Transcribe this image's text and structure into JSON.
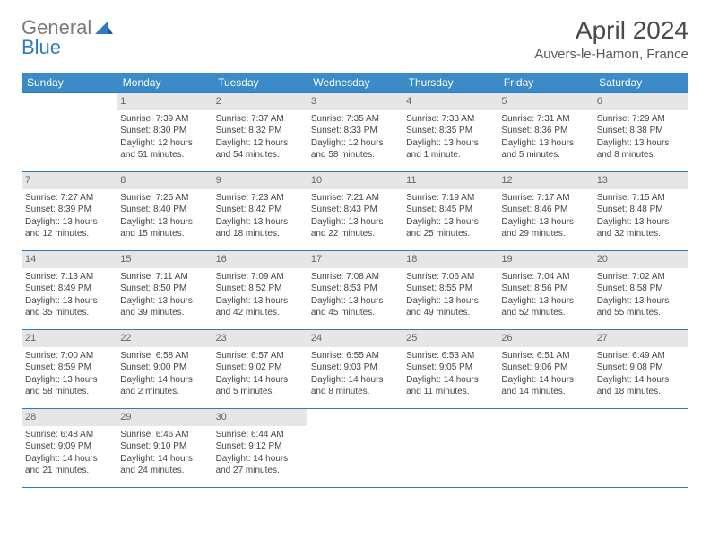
{
  "brand": {
    "part1": "General",
    "part2": "Blue"
  },
  "title": "April 2024",
  "location": "Auvers-le-Hamon, France",
  "colors": {
    "header_bg": "#3b8bc9",
    "header_text": "#ffffff",
    "row_border": "#2f7bbf",
    "daynum_bg": "#e6e6e6",
    "daynum_text": "#666666",
    "body_text": "#444444",
    "logo_gray": "#7a7a7a",
    "logo_blue": "#2f7bbf"
  },
  "weekdays": [
    "Sunday",
    "Monday",
    "Tuesday",
    "Wednesday",
    "Thursday",
    "Friday",
    "Saturday"
  ],
  "weeks": [
    [
      null,
      {
        "n": "1",
        "sunrise": "Sunrise: 7:39 AM",
        "sunset": "Sunset: 8:30 PM",
        "daylight": "Daylight: 12 hours and 51 minutes."
      },
      {
        "n": "2",
        "sunrise": "Sunrise: 7:37 AM",
        "sunset": "Sunset: 8:32 PM",
        "daylight": "Daylight: 12 hours and 54 minutes."
      },
      {
        "n": "3",
        "sunrise": "Sunrise: 7:35 AM",
        "sunset": "Sunset: 8:33 PM",
        "daylight": "Daylight: 12 hours and 58 minutes."
      },
      {
        "n": "4",
        "sunrise": "Sunrise: 7:33 AM",
        "sunset": "Sunset: 8:35 PM",
        "daylight": "Daylight: 13 hours and 1 minute."
      },
      {
        "n": "5",
        "sunrise": "Sunrise: 7:31 AM",
        "sunset": "Sunset: 8:36 PM",
        "daylight": "Daylight: 13 hours and 5 minutes."
      },
      {
        "n": "6",
        "sunrise": "Sunrise: 7:29 AM",
        "sunset": "Sunset: 8:38 PM",
        "daylight": "Daylight: 13 hours and 8 minutes."
      }
    ],
    [
      {
        "n": "7",
        "sunrise": "Sunrise: 7:27 AM",
        "sunset": "Sunset: 8:39 PM",
        "daylight": "Daylight: 13 hours and 12 minutes."
      },
      {
        "n": "8",
        "sunrise": "Sunrise: 7:25 AM",
        "sunset": "Sunset: 8:40 PM",
        "daylight": "Daylight: 13 hours and 15 minutes."
      },
      {
        "n": "9",
        "sunrise": "Sunrise: 7:23 AM",
        "sunset": "Sunset: 8:42 PM",
        "daylight": "Daylight: 13 hours and 18 minutes."
      },
      {
        "n": "10",
        "sunrise": "Sunrise: 7:21 AM",
        "sunset": "Sunset: 8:43 PM",
        "daylight": "Daylight: 13 hours and 22 minutes."
      },
      {
        "n": "11",
        "sunrise": "Sunrise: 7:19 AM",
        "sunset": "Sunset: 8:45 PM",
        "daylight": "Daylight: 13 hours and 25 minutes."
      },
      {
        "n": "12",
        "sunrise": "Sunrise: 7:17 AM",
        "sunset": "Sunset: 8:46 PM",
        "daylight": "Daylight: 13 hours and 29 minutes."
      },
      {
        "n": "13",
        "sunrise": "Sunrise: 7:15 AM",
        "sunset": "Sunset: 8:48 PM",
        "daylight": "Daylight: 13 hours and 32 minutes."
      }
    ],
    [
      {
        "n": "14",
        "sunrise": "Sunrise: 7:13 AM",
        "sunset": "Sunset: 8:49 PM",
        "daylight": "Daylight: 13 hours and 35 minutes."
      },
      {
        "n": "15",
        "sunrise": "Sunrise: 7:11 AM",
        "sunset": "Sunset: 8:50 PM",
        "daylight": "Daylight: 13 hours and 39 minutes."
      },
      {
        "n": "16",
        "sunrise": "Sunrise: 7:09 AM",
        "sunset": "Sunset: 8:52 PM",
        "daylight": "Daylight: 13 hours and 42 minutes."
      },
      {
        "n": "17",
        "sunrise": "Sunrise: 7:08 AM",
        "sunset": "Sunset: 8:53 PM",
        "daylight": "Daylight: 13 hours and 45 minutes."
      },
      {
        "n": "18",
        "sunrise": "Sunrise: 7:06 AM",
        "sunset": "Sunset: 8:55 PM",
        "daylight": "Daylight: 13 hours and 49 minutes."
      },
      {
        "n": "19",
        "sunrise": "Sunrise: 7:04 AM",
        "sunset": "Sunset: 8:56 PM",
        "daylight": "Daylight: 13 hours and 52 minutes."
      },
      {
        "n": "20",
        "sunrise": "Sunrise: 7:02 AM",
        "sunset": "Sunset: 8:58 PM",
        "daylight": "Daylight: 13 hours and 55 minutes."
      }
    ],
    [
      {
        "n": "21",
        "sunrise": "Sunrise: 7:00 AM",
        "sunset": "Sunset: 8:59 PM",
        "daylight": "Daylight: 13 hours and 58 minutes."
      },
      {
        "n": "22",
        "sunrise": "Sunrise: 6:58 AM",
        "sunset": "Sunset: 9:00 PM",
        "daylight": "Daylight: 14 hours and 2 minutes."
      },
      {
        "n": "23",
        "sunrise": "Sunrise: 6:57 AM",
        "sunset": "Sunset: 9:02 PM",
        "daylight": "Daylight: 14 hours and 5 minutes."
      },
      {
        "n": "24",
        "sunrise": "Sunrise: 6:55 AM",
        "sunset": "Sunset: 9:03 PM",
        "daylight": "Daylight: 14 hours and 8 minutes."
      },
      {
        "n": "25",
        "sunrise": "Sunrise: 6:53 AM",
        "sunset": "Sunset: 9:05 PM",
        "daylight": "Daylight: 14 hours and 11 minutes."
      },
      {
        "n": "26",
        "sunrise": "Sunrise: 6:51 AM",
        "sunset": "Sunset: 9:06 PM",
        "daylight": "Daylight: 14 hours and 14 minutes."
      },
      {
        "n": "27",
        "sunrise": "Sunrise: 6:49 AM",
        "sunset": "Sunset: 9:08 PM",
        "daylight": "Daylight: 14 hours and 18 minutes."
      }
    ],
    [
      {
        "n": "28",
        "sunrise": "Sunrise: 6:48 AM",
        "sunset": "Sunset: 9:09 PM",
        "daylight": "Daylight: 14 hours and 21 minutes."
      },
      {
        "n": "29",
        "sunrise": "Sunrise: 6:46 AM",
        "sunset": "Sunset: 9:10 PM",
        "daylight": "Daylight: 14 hours and 24 minutes."
      },
      {
        "n": "30",
        "sunrise": "Sunrise: 6:44 AM",
        "sunset": "Sunset: 9:12 PM",
        "daylight": "Daylight: 14 hours and 27 minutes."
      },
      null,
      null,
      null,
      null
    ]
  ]
}
